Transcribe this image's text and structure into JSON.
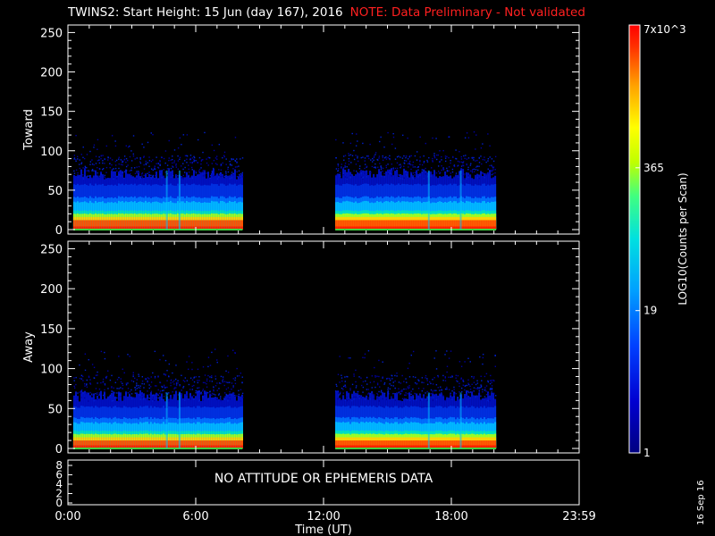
{
  "header": {
    "title": "TWINS2: Start Height: 15 Jun (day 167), 2016",
    "note": "NOTE: Data Preliminary - Not validated"
  },
  "chart_data": [
    {
      "type": "heatmap",
      "panel": "Toward",
      "ylabel": "Toward",
      "ylim": [
        0,
        255
      ],
      "yticks": [
        "0",
        "50",
        "100",
        "150",
        "200",
        "250"
      ],
      "xlim_hours": [
        0,
        24
      ],
      "data_intervals_hours": [
        [
          0.25,
          8.2
        ],
        [
          12.55,
          20.1
        ]
      ],
      "spikes_hours": [
        4.6,
        5.2,
        16.9,
        18.4
      ],
      "intensity_band": {
        "red_max": 12,
        "yellow_max": 20,
        "cyan_max": 35,
        "blue_max": 65,
        "scatter_max": 125
      }
    },
    {
      "type": "heatmap",
      "panel": "Away",
      "ylabel": "Away",
      "ylim": [
        0,
        255
      ],
      "yticks": [
        "0",
        "50",
        "100",
        "150",
        "200",
        "250"
      ],
      "xlim_hours": [
        0,
        24
      ],
      "data_intervals_hours": [
        [
          0.25,
          8.2
        ],
        [
          12.55,
          20.1
        ]
      ],
      "spikes_hours": [
        4.6,
        5.2,
        16.9,
        18.4
      ],
      "intensity_band": {
        "red_max": 10,
        "yellow_max": 18,
        "cyan_max": 32,
        "blue_max": 60,
        "scatter_max": 125
      }
    }
  ],
  "ephemeris_panel": {
    "message": "NO ATTITUDE OR EPHEMERIS DATA",
    "yticks": [
      "0",
      "2",
      "4",
      "6",
      "8"
    ]
  },
  "xaxis": {
    "tick_labels": [
      "0:00",
      "6:00",
      "12:00",
      "18:00",
      "23:59"
    ],
    "tick_hours": [
      0,
      6,
      12,
      18,
      24
    ],
    "label": "Time (UT)"
  },
  "colorbar": {
    "label": "LOG10(Counts per Scan)",
    "tick_labels": [
      "1",
      "19",
      "365",
      "7x10^3"
    ],
    "tick_log_values": [
      0,
      1.2788,
      2.5623,
      3.8451
    ],
    "log_max": 3.8451
  },
  "footer": {
    "date_stamp": "16 Sep 16"
  }
}
